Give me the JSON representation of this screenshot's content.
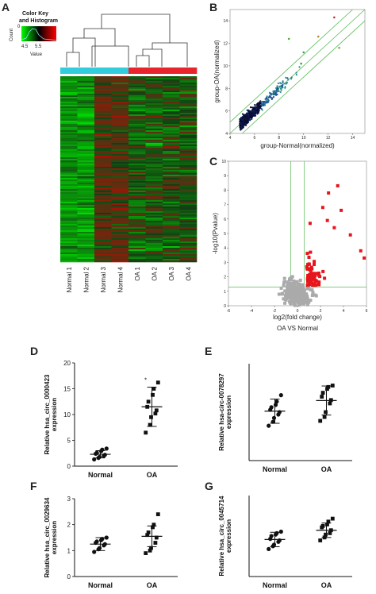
{
  "panels": {
    "A": "A",
    "B": "B",
    "C": "C",
    "D": "D",
    "E": "E",
    "F": "F",
    "G": "G"
  },
  "colors": {
    "heat_low": "#00ff00",
    "heat_mid": "#000000",
    "heat_high": "#ff0000",
    "normal_bar": "#33ccdd",
    "oa_bar": "#e8242c",
    "scatter_dark": "#0b1f5c",
    "scatter_teal": "#2a8a8a",
    "guide_line": "#55bb55",
    "volcano_sig": "#e8141c",
    "volcano_ns": "#aaaaaa"
  },
  "chart_data": [
    {
      "panel": "A",
      "type": "heatmap",
      "color_key": {
        "title_line1": "Color Key",
        "title_line2": "and Histogram",
        "count_label": "Count",
        "count_tick": "0",
        "value_label": "Value",
        "ticks": [
          "4.5",
          "5.5"
        ]
      },
      "columns": [
        "Normal 1",
        "Normal 2",
        "Normal 3",
        "Normal 4",
        "OA 1",
        "OA 2",
        "OA 3",
        "OA 4"
      ],
      "groups": [
        "Normal",
        "Normal",
        "Normal",
        "Normal",
        "OA",
        "OA",
        "OA",
        "OA"
      ]
    },
    {
      "panel": "B",
      "type": "scatter",
      "xlabel": "group-Normal(normalized)",
      "ylabel": "group-OA(normalized)",
      "xlim": [
        4,
        15
      ],
      "ylim": [
        4,
        15
      ],
      "xticks": [
        "4",
        "6",
        "8",
        "10",
        "12",
        "14"
      ],
      "yticks": [
        "4",
        "6",
        "8",
        "10",
        "12",
        "14"
      ]
    },
    {
      "panel": "C",
      "type": "scatter",
      "xlabel": "log2(fold change)",
      "ylabel": "-log10(Pvalue)",
      "caption": "OA VS Normal",
      "xlim": [
        -6,
        6
      ],
      "ylim": [
        0,
        10
      ],
      "xticks": [
        "-6",
        "-4",
        "-2",
        "0",
        "2",
        "4",
        "6"
      ],
      "yticks": [
        "0",
        "1",
        "2",
        "3",
        "4",
        "5",
        "6",
        "7",
        "8",
        "9",
        "10"
      ]
    },
    {
      "panel": "D",
      "type": "scatter",
      "ylabel_line1": "Relative hsa_circ_0000423",
      "ylabel_line2": "expression",
      "categories": [
        "Normal",
        "OA"
      ],
      "ylim": [
        0,
        20
      ],
      "yticks": [
        "0",
        "5",
        "10",
        "15",
        "20"
      ],
      "annotation": "*",
      "groups": [
        {
          "values": [
            1.3,
            1.6,
            1.8,
            2.0,
            2.2,
            2.4,
            2.6,
            2.9,
            3.2,
            3.4
          ],
          "mean": 2.3,
          "sd": 0.7
        },
        {
          "values": [
            6.5,
            8.0,
            9.5,
            10.2,
            10.8,
            11.5,
            12.5,
            13.8,
            15.0,
            16.2
          ],
          "mean": 11.5,
          "sd": 3.8
        }
      ]
    },
    {
      "panel": "E",
      "type": "scatter",
      "ylabel_line1": "Relative hsa-circ-0078297",
      "ylabel_line2": "expression",
      "categories": [
        "Normal",
        "OA"
      ],
      "ylim": [
        0,
        2.0
      ],
      "yticks": [],
      "groups": [
        {
          "values": [
            0.72,
            0.8,
            0.88,
            0.95,
            1.0,
            1.05,
            1.1,
            1.15,
            1.22,
            1.35
          ],
          "mean": 1.02,
          "sd": 0.25
        },
        {
          "values": [
            0.82,
            0.9,
            1.0,
            1.18,
            1.25,
            1.32,
            1.4,
            1.48,
            1.52,
            1.55
          ],
          "mean": 1.24,
          "sd": 0.3
        }
      ]
    },
    {
      "panel": "F",
      "type": "scatter",
      "ylabel_line1": "Relative hsa_circ_0029634",
      "ylabel_line2": "expression",
      "categories": [
        "Normal",
        "OA"
      ],
      "ylim": [
        0,
        3
      ],
      "yticks": [
        "0",
        "1",
        "2",
        "3"
      ],
      "groups": [
        {
          "values": [
            0.95,
            1.05,
            1.1,
            1.2,
            1.25,
            1.3,
            1.35,
            1.4,
            1.45,
            1.5
          ],
          "mean": 1.25,
          "sd": 0.25
        },
        {
          "values": [
            0.9,
            1.0,
            1.1,
            1.3,
            1.5,
            1.6,
            1.7,
            1.9,
            2.0,
            2.4
          ],
          "mean": 1.55,
          "sd": 0.4
        }
      ]
    },
    {
      "panel": "G",
      "type": "scatter",
      "ylabel_line1": "Relative hsa_circ_0045714",
      "ylabel_line2": "expression",
      "categories": [
        "Normal",
        "OA"
      ],
      "ylim": [
        0,
        2.8
      ],
      "yticks": [],
      "groups": [
        {
          "values": [
            0.95,
            1.05,
            1.1,
            1.2,
            1.25,
            1.3,
            1.4,
            1.45,
            1.5,
            1.55
          ],
          "mean": 1.28,
          "sd": 0.25
        },
        {
          "values": [
            1.25,
            1.35,
            1.45,
            1.5,
            1.6,
            1.7,
            1.75,
            1.8,
            1.9,
            2.0
          ],
          "mean": 1.6,
          "sd": 0.25
        }
      ]
    }
  ]
}
